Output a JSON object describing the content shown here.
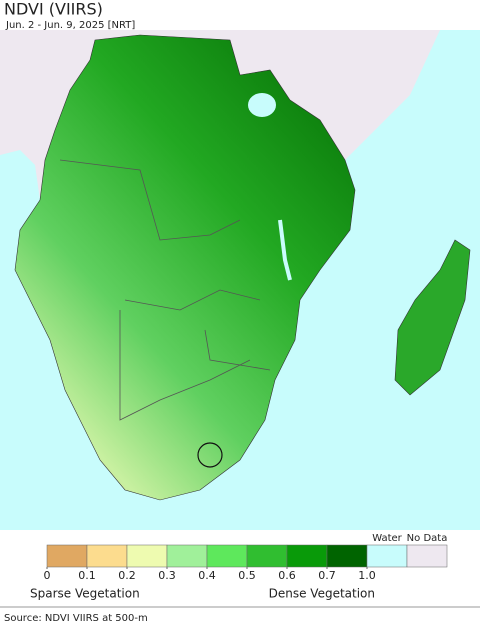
{
  "header": {
    "title": "NDVI (VIIRS)",
    "subtitle": "Jun. 2 - Jun. 9, 2025 [NRT]"
  },
  "legend": {
    "colors": [
      "#e0a862",
      "#fcdc8e",
      "#eefbb0",
      "#a0f09a",
      "#5ee85c",
      "#30be30",
      "#099a09",
      "#006400"
    ],
    "ticks": [
      0,
      0.1,
      0.2,
      0.3,
      0.4,
      0.5,
      0.6,
      0.7,
      {
        "value": 1,
        "label": "1.0"
      }
    ],
    "water_label": "Water",
    "water_color": "#c8fcfc",
    "nodata_label": "No Data",
    "nodata_color": "#eee8f0",
    "sparse_label": "Sparse Vegetation",
    "dense_label": "Dense Vegetation"
  },
  "source": "Source: NDVI VIIRS at 500-m"
}
